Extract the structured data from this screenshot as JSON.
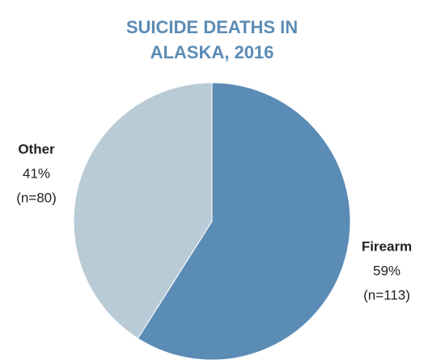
{
  "chart_data": {
    "type": "pie",
    "title": "SUICIDE DEATHS IN ALASKA, 2016",
    "categories": [
      "Firearm",
      "Other"
    ],
    "values": [
      59,
      41
    ],
    "value_labels": [
      "59%",
      "41%"
    ],
    "counts": [
      113,
      80
    ],
    "count_labels": [
      "(n=113)",
      "(n=80)"
    ],
    "colors": [
      "#5b8cb5",
      "#b9cbd6"
    ]
  }
}
